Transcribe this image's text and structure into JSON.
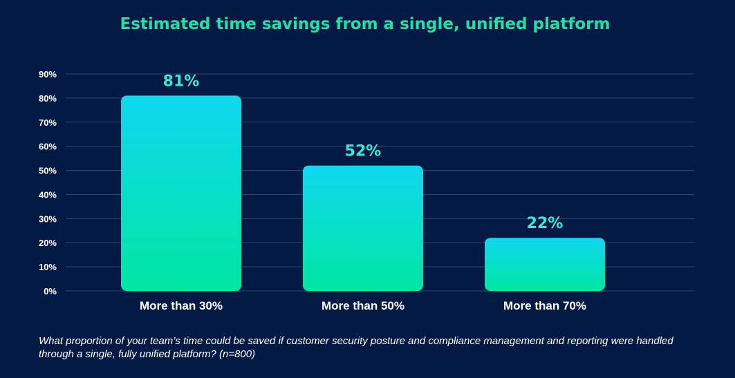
{
  "chart_data": {
    "type": "bar",
    "title": "Estimated time savings from a single, unified platform",
    "categories": [
      "More than 30%",
      "More than 50%",
      "More than 70%"
    ],
    "values": [
      81,
      52,
      22
    ],
    "data_labels": [
      "81%",
      "52%",
      "22%"
    ],
    "ylim": [
      0,
      90
    ],
    "yticks": [
      0,
      10,
      20,
      30,
      40,
      50,
      60,
      70,
      80,
      90
    ],
    "ytick_labels": [
      "0%",
      "10%",
      "20%",
      "30%",
      "40%",
      "50%",
      "60%",
      "70%",
      "80%",
      "90%"
    ],
    "grid": true,
    "legend": "none",
    "footnote": "What proportion of your team’s time could be saved if customer security posture and compliance management and reporting were handled through a single, fully unified platform? (n=800)"
  },
  "colors": {
    "background": "#031a45",
    "title": "#22e0a6",
    "bar_top": "#0fd8f0",
    "bar_bottom": "#00e6a2",
    "data_label": "#3ee8d2",
    "text": "#ffffff",
    "grid": "#2d456f"
  }
}
